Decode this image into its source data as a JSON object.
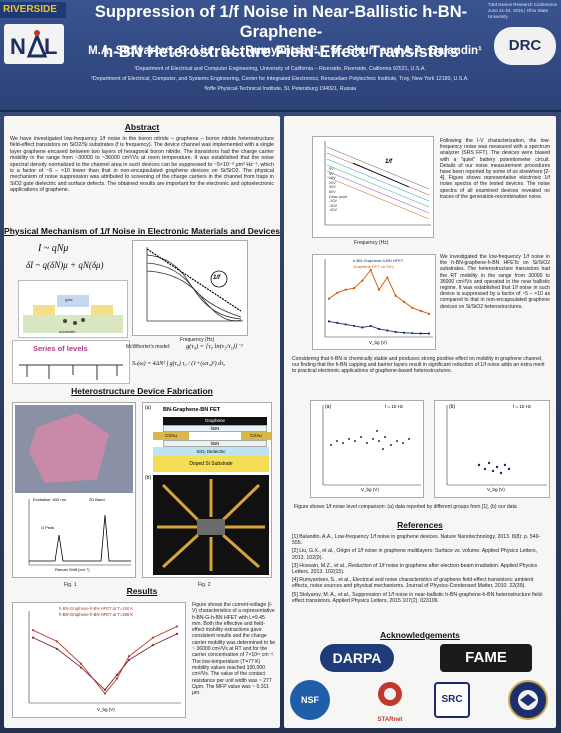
{
  "header": {
    "university": "RIVERSIDE",
    "title_line1": "Suppression of 1/f Noise in Near-Ballistic h-BN-Graphene-",
    "title_line2": "h-BN Heterostructure Field-Effect Transistors",
    "conference": "73rd Device Research Conference June 21-24, 2015 | Ohio State University",
    "authors": "M.A. Stolyarov¹, G. Liu¹, S.L. Rumyantsev²,³, M. Shur² and A.A. Balandin¹",
    "affiliation1": "¹Department of Electrical and Computer Engineering, University of California – Riverside, Riverside, California 92521, U.S.A.",
    "affiliation2": "²Department of Electrical, Computer, and Systems Engineering, Center for Integrated Electronics, Rensselaer Polytechnic Institute, Troy, New York 12180, U.S.A.",
    "affiliation3": "³Ioffe Physical-Technical Institute, St. Petersburg 194021, Russia",
    "logo_right": "DRC"
  },
  "abstract": {
    "heading": "Abstract",
    "text": "We have investigated low-frequency 1/f noise in the boron nitride – graphene – boron nitride heterostructure field-effect transistors on SiO2/Si substrates (f is frequency). The device channel was implemented with a single layer graphene encased between two layers of hexagonal boron nitride. The transistors had the charge carrier mobility in the range from ~30000 to ~36000 cm²/Vs at room temperature. It was established that the noise spectral density normalized to the channel area in such devices can be suppressed to ~5×10⁻⁹ μm² Hz⁻¹, which is a factor of ~5 – ×10 lower than that in non-encapsulated graphene devices on Si/SiO2. The physical mechanism of noise suppression was attributed to screening of the charge carriers in the channel from traps in SiO2 gate dielectric and surface defects. The obtained results are important for the electronic and optoelectronic applications of graphene."
  },
  "mechanism": {
    "heading": "Physical Mechanism of 1/f Noise in Electronic Materials and Devices",
    "eq1": "I ~ qNμ",
    "eq2": "δI ~ q(δN)μ + qN(δμ)",
    "series_label": "Series of levels",
    "mcwhorter": "McWhorter's model:",
    "mc_eq1": "g(τ₀) = [τ₀ ln(τ₂/τ₁)]⁻¹",
    "mc_eq2": "Sₙ(ω) = 4ΔN² ∫ g(τ₀) τ₀ / (1+(ωτ₀)²) dτ₀",
    "plot_label": "1/f",
    "plot_xlabel": "Frequency (Hz)",
    "plot_ylabel": "Noise Density, Sᵥ (V²/Hz)",
    "layer_labels": [
      "gate",
      "substrate"
    ]
  },
  "fabrication": {
    "heading": "Heterostructure Device Fabrication",
    "fig1_caption": "Fig. 1",
    "fig2_caption": "Fig. 2",
    "fig1_legend1": "Excitation: 633 nm",
    "fig1_legend2": "2D Band",
    "fig1_legend3": "G Peak",
    "fig1_xlabel": "Raman Shift (cm⁻¹)",
    "fig1_ylabel": "Raman Intensity (Arb. Units)",
    "panel_a": "(a)",
    "panel_b": "(b)",
    "stack_title": "BN-Graphene-BN FET",
    "stack_layers": [
      "Cr/Au",
      "Graphene",
      "Cr/Au",
      "hBN",
      "hBN",
      "SiO₂ Dielectric",
      "Doped Si Substrate"
    ]
  },
  "results": {
    "heading": "Results",
    "legend1": "h-BN-Graphene-h-BN HFET at T=150 K",
    "legend2": "h-BN-Graphene-h-BN HFET at T=300 K",
    "xlabel": "V_bg (V)",
    "ylabel": "I_ds (A)",
    "text": "Figure shows the current-voltage (I-V) characteristics of a representative h-BN-G-h-BN HFET with L=9.45 mm. Both the effective and field-effect mobility extractions gave consistent results and the charge carrier mobility was determined to be ~ 36000 cm²/Vs at RT and for the carrier concentration of 7×10¹¹ cm⁻². The low-temperature (T=77 K) mobility values reached 100,000 cm²/Vs. The value of the contact resistance per unit width was ~ 277 Ωμm. The MFP value was ~ 0.311 μm."
  },
  "right": {
    "text1": "Following the I-V characterization, the low-frequency noise was measured with a spectrum analyzer (SRS FFT). The devices were biased with a \"quiet\" battery potentiometer circuit. Details of our noise measurement procedures have been reported by some of us elsewhere [2-4]. Figure shows representative electronic 1/f noise spectra of the tested devices. The noise spectra of all examined devices revealed no traces of the generation-recombination noise.",
    "text2": "We investigated the low-frequency 1/f noise in the h-BN-graphene-h-BN HFETs on Si/SiO2 substrates. The heterostructure transistors had the RT mobility in the range from 30000 to 36000 cm²/Vs and operated in the near ballistic regime. It was established that 1/f noise in such device is suppressed by a factor of ~5 – ×10 as compared to that in non-encapsulated graphene devices on Si/SiO2 heterostructures.",
    "text3": "Considering that h-BN is chemically stable and produces strong positive effect on mobility in graphene channel, our finding that the h-BN capping and barrier layers result in significant reduction of 1/f noise adds an extra merit to practical electronic applications of graphene-based heterostructures.",
    "noise_plot_label": "1/f",
    "noise_legend": [
      "0V",
      "5V",
      "10V",
      "20V",
      "40V",
      "60V",
      "Dirac point",
      "-10V",
      "-30V",
      "-40V"
    ],
    "noise_xlabel": "Frequency (Hz)",
    "noise_ylabel": "S_I/I² (Hz⁻¹)",
    "amp_legend1": "h-BN-Graphene-h-BN HFET",
    "amp_legend2": "Graphene FET on SiO₂",
    "amp_xlabel": "V_bg (V)",
    "amp_ylabel": "Noise Amplitude",
    "cmp_label_a": "(a)",
    "cmp_label_b": "(b)",
    "cmp_freq": "f = 10 Hz",
    "cmp_xlabel": "V_bg (V)",
    "cmp_ylabel_a": "S_I/I² × W × L (μm² Hz⁻¹)",
    "cmp_ylabel_b": "S_I/I² × A (μm² Hz⁻¹)",
    "cmp_caption": "Figure shows 1/f noise level comparison: (a) data reported by different groups from [1], (b) our data"
  },
  "references": {
    "heading": "References",
    "items": [
      "[1] Balandin, A.A., Low-frequency 1/f noise in graphene devices. Nature Nanotechnology, 2013. 8(8): p. 549-555.",
      "[2] Liu, G.X., et al., Origin of 1/f noise in graphene multilayers: Surface vs. volume. Applied Physics Letters, 2013. 102(9).",
      "[3] Hossain, M.Z., et al., Reduction of 1/f noise in graphene after electron-beam irradiation. Applied Physics Letters, 2013. 102(15).",
      "[4] Rumyantsev, S., et al., Electrical and noise characteristics of graphene field-effect transistors: ambient effects, noise sources and physical mechanisms. Journal of Physics-Condensed Matter, 2010. 22(39).",
      "[5] Stolyarov, M. A., et al., Suppression of 1/f noise in near-ballistic h-BN-graphene-h-BN heterostructure field-effect transistors. Applied Physics Letters, 2015 107(2), 023106."
    ]
  },
  "acknowledgements": {
    "heading": "Acknowledgements",
    "sponsors": [
      "DARPA",
      "FAME",
      "NSF",
      "STARnet",
      "SRC"
    ]
  },
  "colors": {
    "header_bg": "#3a5490",
    "panel_bg": "#f6f6f4",
    "title_text": "#ffffff",
    "ucr_gold": "#e8c23a"
  },
  "chart_data": [
    {
      "type": "line",
      "title": "",
      "xlabel": "V_bg (V)",
      "ylabel": "Noise Amplitude",
      "x": [
        -60,
        -50,
        -40,
        -30,
        -20,
        -10,
        0,
        10,
        20,
        30,
        40,
        50,
        60
      ],
      "series": [
        {
          "name": "h-BN-Graphene-h-BN HFET",
          "values": [
            0.9,
            0.8,
            0.7,
            0.6,
            0.5,
            0.6,
            0.4,
            0.3,
            0.2,
            0.15,
            0.12,
            0.1,
            0.1
          ]
        },
        {
          "name": "Graphene FET on SiO₂",
          "values": [
            2.4,
            2.8,
            3.0,
            3.1,
            3.6,
            4.3,
            3.0,
            3.8,
            2.6,
            2.2,
            1.8,
            1.6,
            1.4
          ]
        }
      ]
    },
    {
      "type": "line",
      "title": "",
      "xlabel": "V_bg (V)",
      "ylabel": "I_ds (A)",
      "x": [
        -60,
        -40,
        -20,
        0,
        10,
        20,
        40,
        60
      ],
      "series": [
        {
          "name": "h-BN-Graphene-h-BN HFET at T=150 K",
          "values": [
            1.9,
            1.6,
            1.0,
            0.2,
            0.6,
            1.2,
            1.7,
            2.0
          ]
        },
        {
          "name": "h-BN-Graphene-h-BN HFET at T=300 K",
          "values": [
            1.7,
            1.4,
            0.9,
            0.3,
            0.7,
            1.1,
            1.5,
            1.8
          ]
        }
      ]
    }
  ]
}
